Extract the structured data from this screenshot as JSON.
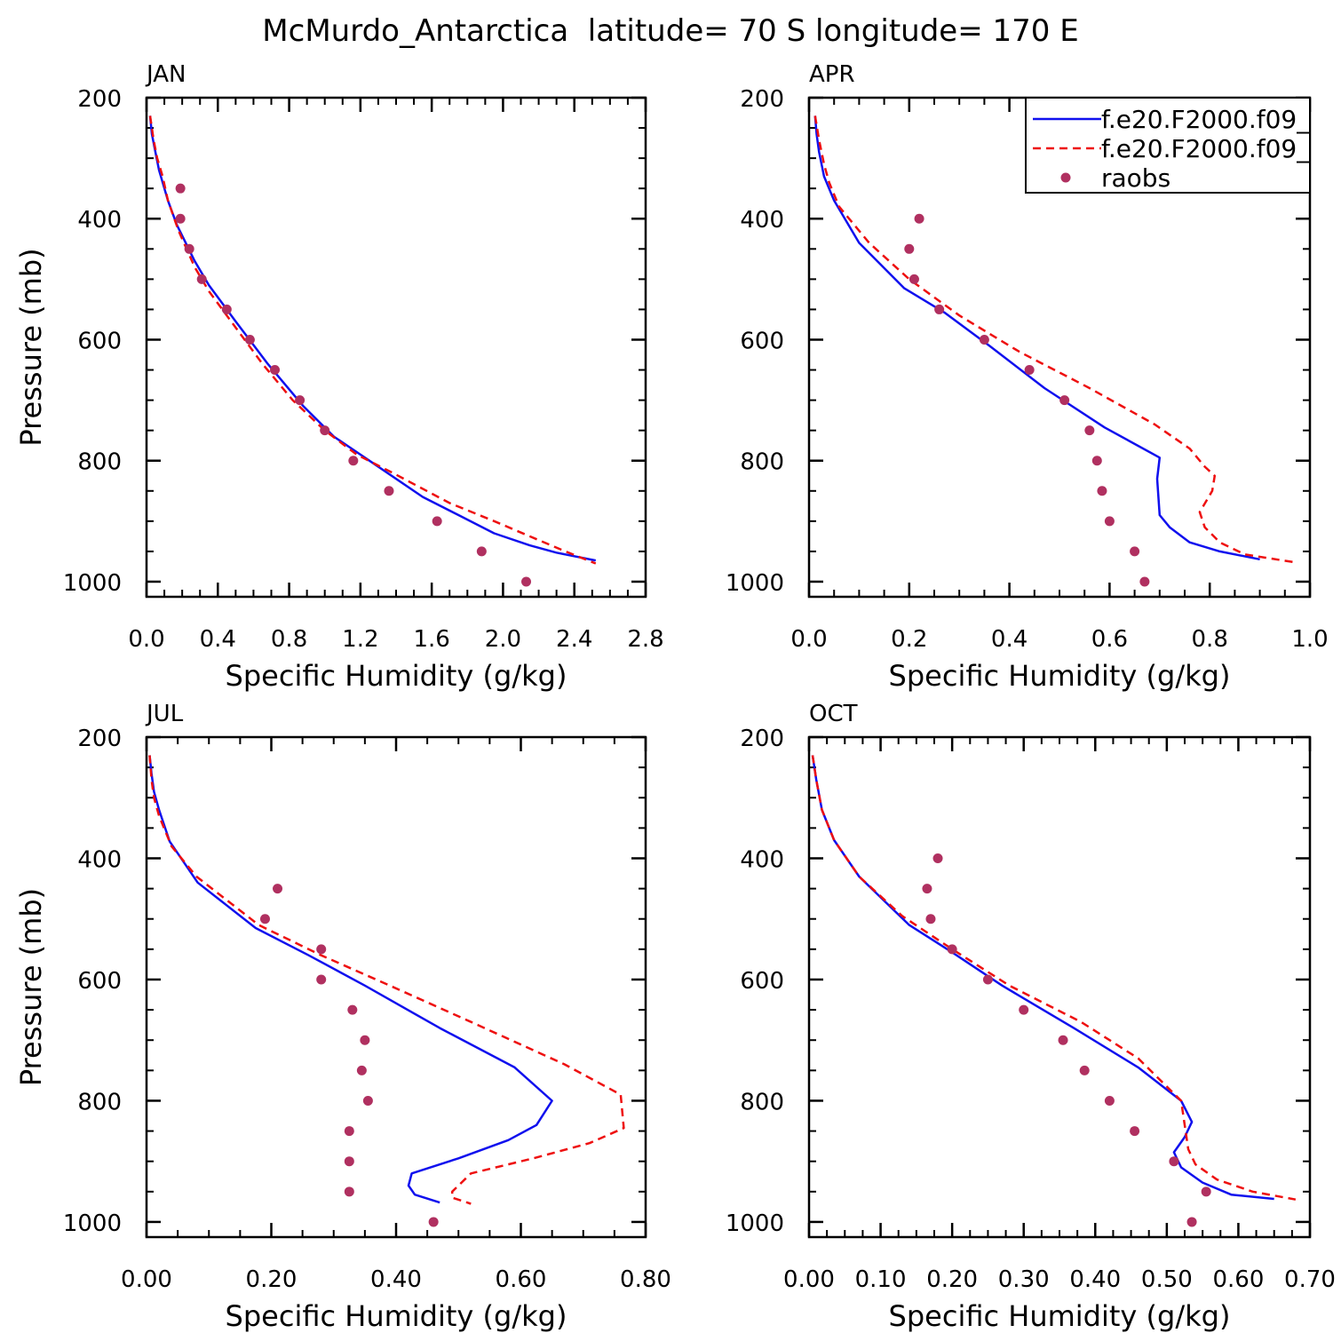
{
  "figure": {
    "title": "McMurdo_Antarctica  latitude= 70 S longitude= 170 E",
    "legend": [
      {
        "label": "f.e20.F2000.f09_",
        "style": "solid",
        "color": "#1010ee"
      },
      {
        "label": "f.e20.F2000.f09_",
        "style": "dashed",
        "color": "#ee1010"
      },
      {
        "label": "raobs",
        "style": "marker",
        "color": "#b03060"
      }
    ],
    "legend_panel": "APR",
    "legend_position": "top-right"
  },
  "chart_data": [
    {
      "type": "line",
      "panel_label": "JAN",
      "xlabel": "Specific Humidity (g/kg)",
      "ylabel": "Pressure (mb)",
      "xlim": [
        0,
        2.8
      ],
      "ylim": [
        200,
        1025
      ],
      "y_inverted": true,
      "xticks": [
        0,
        0.4,
        0.8,
        1.2,
        1.6,
        2.0,
        2.4,
        2.8
      ],
      "xticklabels": [
        "0.0",
        "0.4",
        "0.8",
        "1.2",
        "1.6",
        "2.0",
        "2.4",
        "2.8"
      ],
      "xminor": 0.1,
      "yticks": [
        200,
        400,
        600,
        800,
        1000
      ],
      "yticklabels": [
        "200",
        "400",
        "600",
        "800",
        "1000"
      ],
      "yminor": 50,
      "series": [
        {
          "legend_index": 0,
          "points": [
            [
              0.02,
              230
            ],
            [
              0.03,
              260
            ],
            [
              0.05,
              290
            ],
            [
              0.07,
              320
            ],
            [
              0.12,
              370
            ],
            [
              0.17,
              410
            ],
            [
              0.27,
              470
            ],
            [
              0.35,
              510
            ],
            [
              0.5,
              570
            ],
            [
              0.68,
              640
            ],
            [
              0.88,
              710
            ],
            [
              1.05,
              760
            ],
            [
              1.25,
              800
            ],
            [
              1.55,
              860
            ],
            [
              1.75,
              890
            ],
            [
              1.95,
              920
            ],
            [
              2.15,
              940
            ],
            [
              2.3,
              952
            ],
            [
              2.52,
              965
            ]
          ]
        },
        {
          "legend_index": 1,
          "points": [
            [
              0.02,
              230
            ],
            [
              0.04,
              270
            ],
            [
              0.06,
              300
            ],
            [
              0.09,
              330
            ],
            [
              0.12,
              370
            ],
            [
              0.18,
              420
            ],
            [
              0.27,
              480
            ],
            [
              0.35,
              520
            ],
            [
              0.5,
              580
            ],
            [
              0.65,
              640
            ],
            [
              0.82,
              700
            ],
            [
              1.0,
              750
            ],
            [
              1.18,
              790
            ],
            [
              1.38,
              820
            ],
            [
              1.7,
              870
            ],
            [
              1.95,
              900
            ],
            [
              2.15,
              925
            ],
            [
              2.35,
              950
            ],
            [
              2.52,
              970
            ]
          ]
        },
        {
          "legend_index": 2,
          "points": [
            [
              0.19,
              350
            ],
            [
              0.19,
              400
            ],
            [
              0.24,
              450
            ],
            [
              0.31,
              500
            ],
            [
              0.45,
              550
            ],
            [
              0.58,
              600
            ],
            [
              0.72,
              650
            ],
            [
              0.86,
              700
            ],
            [
              1.0,
              750
            ],
            [
              1.16,
              800
            ],
            [
              1.36,
              850
            ],
            [
              1.63,
              900
            ],
            [
              1.88,
              950
            ],
            [
              2.13,
              1000
            ]
          ]
        }
      ]
    },
    {
      "type": "line",
      "panel_label": "APR",
      "xlabel": "Specific Humidity (g/kg)",
      "ylabel": "",
      "xlim": [
        0,
        1.0
      ],
      "ylim": [
        200,
        1025
      ],
      "y_inverted": true,
      "xticks": [
        0,
        0.2,
        0.4,
        0.6,
        0.8,
        1.0
      ],
      "xticklabels": [
        "0.0",
        "0.2",
        "0.4",
        "0.6",
        "0.8",
        "1.0"
      ],
      "xminor": 0.05,
      "yticks": [
        200,
        400,
        600,
        800,
        1000
      ],
      "yticklabels": [
        "200",
        "400",
        "600",
        "800",
        "1000"
      ],
      "yminor": 50,
      "series": [
        {
          "legend_index": 0,
          "points": [
            [
              0.012,
              230
            ],
            [
              0.015,
              260
            ],
            [
              0.02,
              290
            ],
            [
              0.03,
              330
            ],
            [
              0.05,
              370
            ],
            [
              0.1,
              440
            ],
            [
              0.19,
              515
            ],
            [
              0.27,
              555
            ],
            [
              0.36,
              610
            ],
            [
              0.47,
              680
            ],
            [
              0.59,
              745
            ],
            [
              0.7,
              795
            ],
            [
              0.695,
              830
            ],
            [
              0.7,
              890
            ],
            [
              0.72,
              910
            ],
            [
              0.76,
              935
            ],
            [
              0.82,
              950
            ],
            [
              0.9,
              963
            ]
          ]
        },
        {
          "legend_index": 1,
          "points": [
            [
              0.012,
              230
            ],
            [
              0.02,
              270
            ],
            [
              0.03,
              310
            ],
            [
              0.04,
              340
            ],
            [
              0.06,
              380
            ],
            [
              0.12,
              440
            ],
            [
              0.2,
              500
            ],
            [
              0.3,
              560
            ],
            [
              0.42,
              620
            ],
            [
              0.56,
              680
            ],
            [
              0.69,
              740
            ],
            [
              0.76,
              780
            ],
            [
              0.79,
              810
            ],
            [
              0.81,
              825
            ],
            [
              0.805,
              850
            ],
            [
              0.78,
              885
            ],
            [
              0.79,
              910
            ],
            [
              0.82,
              935
            ],
            [
              0.87,
              955
            ],
            [
              0.97,
              968
            ]
          ]
        },
        {
          "legend_index": 2,
          "points": [
            [
              0.22,
              400
            ],
            [
              0.2,
              450
            ],
            [
              0.21,
              500
            ],
            [
              0.26,
              550
            ],
            [
              0.35,
              600
            ],
            [
              0.44,
              650
            ],
            [
              0.51,
              700
            ],
            [
              0.56,
              750
            ],
            [
              0.575,
              800
            ],
            [
              0.585,
              850
            ],
            [
              0.6,
              900
            ],
            [
              0.65,
              950
            ],
            [
              0.67,
              1000
            ]
          ]
        }
      ]
    },
    {
      "type": "line",
      "panel_label": "JUL",
      "xlabel": "Specific Humidity (g/kg)",
      "ylabel": "Pressure (mb)",
      "xlim": [
        0,
        0.8
      ],
      "ylim": [
        200,
        1025
      ],
      "y_inverted": true,
      "xticks": [
        0,
        0.2,
        0.4,
        0.6,
        0.8
      ],
      "xticklabels": [
        "0.00",
        "0.20",
        "0.40",
        "0.60",
        "0.80"
      ],
      "xminor": 0.05,
      "yticks": [
        200,
        400,
        600,
        800,
        1000
      ],
      "yticklabels": [
        "200",
        "400",
        "600",
        "800",
        "1000"
      ],
      "yminor": 50,
      "series": [
        {
          "legend_index": 0,
          "points": [
            [
              0.005,
              230
            ],
            [
              0.008,
              260
            ],
            [
              0.012,
              290
            ],
            [
              0.02,
              320
            ],
            [
              0.037,
              372
            ],
            [
              0.082,
              440
            ],
            [
              0.175,
              515
            ],
            [
              0.26,
              560
            ],
            [
              0.35,
              610
            ],
            [
              0.47,
              680
            ],
            [
              0.59,
              745
            ],
            [
              0.65,
              800
            ],
            [
              0.625,
              840
            ],
            [
              0.58,
              865
            ],
            [
              0.5,
              895
            ],
            [
              0.425,
              920
            ],
            [
              0.42,
              940
            ],
            [
              0.43,
              955
            ],
            [
              0.47,
              968
            ]
          ]
        },
        {
          "legend_index": 1,
          "points": [
            [
              0.005,
              230
            ],
            [
              0.008,
              270
            ],
            [
              0.012,
              300
            ],
            [
              0.02,
              330
            ],
            [
              0.04,
              380
            ],
            [
              0.08,
              430
            ],
            [
              0.18,
              510
            ],
            [
              0.28,
              560
            ],
            [
              0.39,
              610
            ],
            [
              0.52,
              670
            ],
            [
              0.67,
              740
            ],
            [
              0.76,
              790
            ],
            [
              0.765,
              845
            ],
            [
              0.71,
              870
            ],
            [
              0.62,
              895
            ],
            [
              0.52,
              920
            ],
            [
              0.49,
              950
            ],
            [
              0.49,
              960
            ],
            [
              0.52,
              970
            ]
          ]
        },
        {
          "legend_index": 2,
          "points": [
            [
              0.21,
              450
            ],
            [
              0.19,
              500
            ],
            [
              0.28,
              550
            ],
            [
              0.28,
              600
            ],
            [
              0.33,
              650
            ],
            [
              0.35,
              700
            ],
            [
              0.345,
              750
            ],
            [
              0.355,
              800
            ],
            [
              0.325,
              850
            ],
            [
              0.325,
              900
            ],
            [
              0.325,
              950
            ],
            [
              0.46,
              1000
            ]
          ]
        }
      ]
    },
    {
      "type": "line",
      "panel_label": "OCT",
      "xlabel": "Specific Humidity (g/kg)",
      "ylabel": "",
      "xlim": [
        0,
        0.7
      ],
      "ylim": [
        200,
        1025
      ],
      "y_inverted": true,
      "xticks": [
        0,
        0.1,
        0.2,
        0.3,
        0.4,
        0.5,
        0.6,
        0.7
      ],
      "xticklabels": [
        "0.00",
        "0.10",
        "0.20",
        "0.30",
        "0.40",
        "0.50",
        "0.60",
        "0.70"
      ],
      "xminor": 0.025,
      "yticks": [
        200,
        400,
        600,
        800,
        1000
      ],
      "yticklabels": [
        "200",
        "400",
        "600",
        "800",
        "1000"
      ],
      "yminor": 50,
      "series": [
        {
          "legend_index": 0,
          "points": [
            [
              0.005,
              230
            ],
            [
              0.01,
              270
            ],
            [
              0.018,
              320
            ],
            [
              0.035,
              370
            ],
            [
              0.07,
              430
            ],
            [
              0.14,
              510
            ],
            [
              0.2,
              555
            ],
            [
              0.27,
              610
            ],
            [
              0.37,
              680
            ],
            [
              0.46,
              745
            ],
            [
              0.52,
              800
            ],
            [
              0.535,
              835
            ],
            [
              0.525,
              860
            ],
            [
              0.51,
              885
            ],
            [
              0.52,
              910
            ],
            [
              0.55,
              935
            ],
            [
              0.59,
              955
            ],
            [
              0.65,
              962
            ]
          ]
        },
        {
          "legend_index": 1,
          "points": [
            [
              0.005,
              230
            ],
            [
              0.01,
              270
            ],
            [
              0.018,
              320
            ],
            [
              0.035,
              370
            ],
            [
              0.07,
              430
            ],
            [
              0.13,
              495
            ],
            [
              0.2,
              550
            ],
            [
              0.28,
              610
            ],
            [
              0.38,
              670
            ],
            [
              0.46,
              730
            ],
            [
              0.52,
              800
            ],
            [
              0.525,
              840
            ],
            [
              0.53,
              880
            ],
            [
              0.54,
              905
            ],
            [
              0.57,
              930
            ],
            [
              0.62,
              950
            ],
            [
              0.68,
              963
            ]
          ]
        },
        {
          "legend_index": 2,
          "points": [
            [
              0.18,
              400
            ],
            [
              0.165,
              450
            ],
            [
              0.17,
              500
            ],
            [
              0.2,
              550
            ],
            [
              0.25,
              600
            ],
            [
              0.3,
              650
            ],
            [
              0.355,
              700
            ],
            [
              0.385,
              750
            ],
            [
              0.42,
              800
            ],
            [
              0.455,
              850
            ],
            [
              0.51,
              900
            ],
            [
              0.555,
              950
            ],
            [
              0.535,
              1000
            ]
          ]
        }
      ]
    }
  ]
}
